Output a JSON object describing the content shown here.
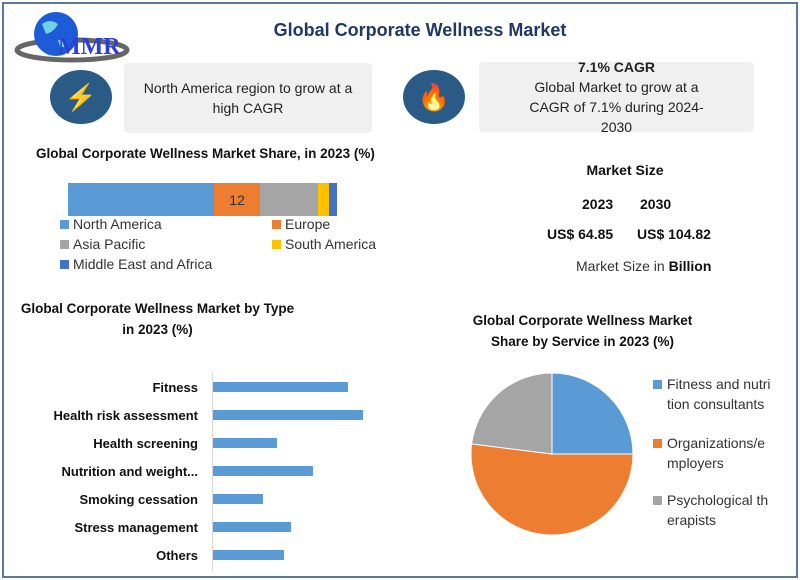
{
  "title": "Global Corporate Wellness Market",
  "logo": {
    "text": "MMR"
  },
  "card_region": {
    "icon": "lightning-icon",
    "text": "North America region to grow at a high CAGR"
  },
  "card_cagr": {
    "icon": "flame-icon",
    "heading": "7.1% CAGR",
    "text": "Global Market to grow at a CAGR of 7.1% during 2024-2030"
  },
  "market_size": {
    "heading": "Market Size",
    "years": [
      "2023",
      "2030"
    ],
    "values": [
      "US$ 64.85",
      "US$ 104.82"
    ],
    "note_prefix": "Market Size in ",
    "note_bold": "Billion"
  },
  "chart_data": [
    {
      "type": "bar",
      "orientation": "horizontal-stacked",
      "title": "Global Corporate Wellness Market Share, in 2023 (%)",
      "legend": "bottom",
      "series": [
        {
          "name": "North America",
          "value": 38,
          "color": "#5b9bd5"
        },
        {
          "name": "Europe",
          "value": 12,
          "label": "12",
          "color": "#ed7d31"
        },
        {
          "name": "Asia Pacific",
          "value": 15,
          "color": "#a5a5a5"
        },
        {
          "name": "South America",
          "value": 3,
          "color": "#ffc000"
        },
        {
          "name": "Middle East and Africa",
          "value": 2,
          "color": "#4472c4"
        }
      ]
    },
    {
      "type": "bar",
      "orientation": "horizontal",
      "title": "Global Corporate Wellness Market by Type in 2023 (%)",
      "color": "#5b9bd5",
      "categories": [
        "Fitness",
        "Health risk assessment",
        "Health screening",
        "Nutrition and weight...",
        "Smoking cessation",
        "Stress management",
        "Others"
      ],
      "values": [
        18,
        20,
        8.5,
        13.3,
        6.7,
        10.4,
        9.5
      ],
      "xlim": [
        0,
        20
      ]
    },
    {
      "type": "pie",
      "title": "Global Corporate Wellness Market Share by Service in 2023 (%)",
      "legend": "right",
      "categories": [
        "Fitness and nutrition consultants",
        "Organizations/employers",
        "Psychological therapists"
      ],
      "values": [
        25,
        52,
        23
      ],
      "colors": [
        "#5b9bd5",
        "#ed7d31",
        "#a5a5a5"
      ]
    }
  ]
}
